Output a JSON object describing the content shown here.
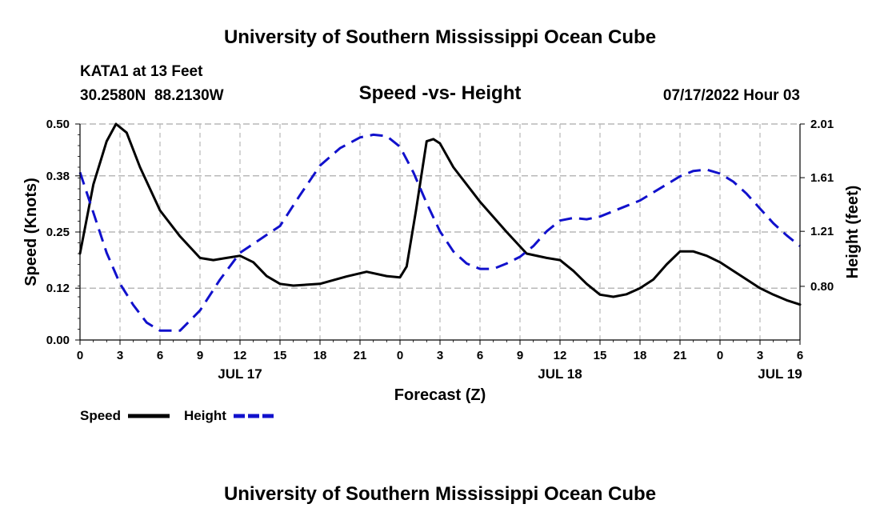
{
  "header": {
    "title": "University of Southern Mississippi Ocean Cube",
    "station": "KATA1 at 13 Feet",
    "coords": "30.2580N  88.2130W",
    "subtitle": "Speed -vs- Height",
    "datetime": "07/17/2022 Hour 03"
  },
  "footer": {
    "title": "University of Southern Mississippi Ocean Cube"
  },
  "chart_data": {
    "type": "line",
    "title": "Speed -vs- Height",
    "xlabel": "Forecast (Z)",
    "ylabel_left": "Speed (Knots)",
    "ylabel_right": "Height (feet)",
    "x_unit": "hours from 00Z Jul 17",
    "xlim": [
      0,
      54
    ],
    "x_ticks": [
      0,
      3,
      6,
      9,
      12,
      15,
      18,
      21,
      24,
      27,
      30,
      33,
      36,
      39,
      42,
      45,
      48,
      51,
      54
    ],
    "x_tick_labels": [
      "0",
      "3",
      "6",
      "9",
      "12",
      "15",
      "18",
      "21",
      "0",
      "3",
      "6",
      "9",
      "12",
      "15",
      "18",
      "21",
      "0",
      "3",
      "6"
    ],
    "date_labels": [
      {
        "x": 12,
        "label": "JUL 17"
      },
      {
        "x": 36,
        "label": "JUL 18"
      },
      {
        "x": 52.5,
        "label": "JUL 19"
      }
    ],
    "ylim_left": [
      0,
      0.5
    ],
    "y_ticks_left": [
      0.0,
      0.12,
      0.25,
      0.38,
      0.5
    ],
    "y_tick_labels_left": [
      "0.00",
      "0.12",
      "0.25",
      "0.38",
      "0.50"
    ],
    "ylim_right": [
      0.4,
      2.01
    ],
    "y_ticks_right": [
      0.8,
      1.21,
      1.61,
      2.01
    ],
    "y_tick_labels_right": [
      "0.80",
      "1.21",
      "1.61",
      "2.01"
    ],
    "grid": true,
    "legend_position": "bottom-left",
    "series": [
      {
        "name": "Speed",
        "axis": "left",
        "color": "#000000",
        "style": "solid",
        "x": [
          0,
          1,
          2,
          2.7,
          3.5,
          4.5,
          6,
          7.5,
          9,
          10,
          11,
          12,
          13,
          14,
          15,
          16,
          18,
          20,
          21.5,
          23,
          24,
          24.5,
          25.2,
          26,
          26.5,
          27,
          28,
          30,
          32,
          33.5,
          35,
          36,
          37,
          38,
          39,
          40,
          41,
          42,
          43,
          44,
          45,
          46,
          47,
          48,
          49,
          50,
          51,
          52,
          53,
          54
        ],
        "y": [
          0.2,
          0.36,
          0.46,
          0.5,
          0.48,
          0.4,
          0.3,
          0.24,
          0.19,
          0.185,
          0.19,
          0.195,
          0.18,
          0.148,
          0.13,
          0.126,
          0.13,
          0.147,
          0.158,
          0.148,
          0.145,
          0.17,
          0.3,
          0.46,
          0.465,
          0.455,
          0.4,
          0.32,
          0.25,
          0.2,
          0.19,
          0.185,
          0.16,
          0.13,
          0.105,
          0.1,
          0.106,
          0.12,
          0.14,
          0.175,
          0.205,
          0.205,
          0.195,
          0.18,
          0.16,
          0.14,
          0.12,
          0.105,
          0.092,
          0.082
        ]
      },
      {
        "name": "Height",
        "axis": "right",
        "color": "#1111cc",
        "style": "dashed",
        "x": [
          0,
          1,
          2,
          3,
          4,
          5,
          6,
          7.5,
          9,
          10.5,
          12,
          13.5,
          15,
          16.5,
          18,
          19.5,
          21,
          22,
          23,
          24,
          25,
          26,
          27,
          28,
          29,
          30,
          31,
          32,
          33,
          34,
          35,
          36,
          37,
          38,
          39,
          40,
          41,
          42,
          43,
          44,
          45,
          46,
          47,
          48,
          49,
          50,
          51,
          52,
          53,
          54
        ],
        "y": [
          1.65,
          1.35,
          1.05,
          0.82,
          0.66,
          0.53,
          0.47,
          0.47,
          0.62,
          0.85,
          1.05,
          1.15,
          1.25,
          1.48,
          1.7,
          1.83,
          1.91,
          1.93,
          1.92,
          1.84,
          1.65,
          1.42,
          1.21,
          1.06,
          0.97,
          0.93,
          0.93,
          0.97,
          1.02,
          1.1,
          1.21,
          1.29,
          1.31,
          1.3,
          1.32,
          1.36,
          1.4,
          1.44,
          1.5,
          1.56,
          1.62,
          1.66,
          1.67,
          1.64,
          1.58,
          1.49,
          1.38,
          1.27,
          1.18,
          1.1
        ]
      }
    ]
  }
}
